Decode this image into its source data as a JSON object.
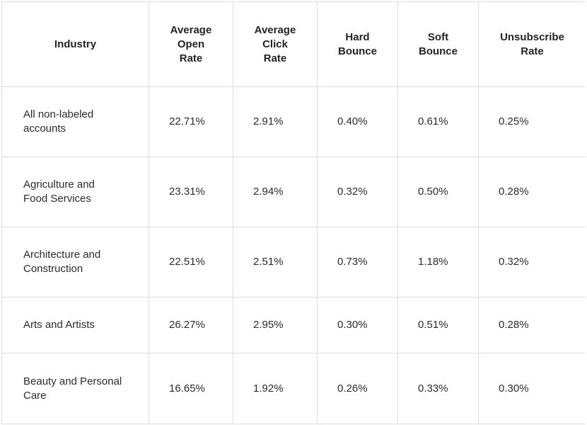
{
  "table": {
    "headers": [
      [
        "Industry"
      ],
      [
        "Average",
        "Open",
        "Rate"
      ],
      [
        "Average",
        "Click",
        "Rate"
      ],
      [
        "Hard",
        "Bounce"
      ],
      [
        "Soft",
        "Bounce"
      ],
      [
        "Unsubscribe",
        "Rate"
      ]
    ],
    "rows": [
      {
        "industry": [
          "All non-labeled",
          "accounts"
        ],
        "open_rate": "22.71%",
        "click_rate": "2.91%",
        "hard_bounce": "0.40%",
        "soft_bounce": "0.61%",
        "unsubscribe_rate": "0.25%"
      },
      {
        "industry": [
          "Agriculture and",
          "Food Services"
        ],
        "open_rate": "23.31%",
        "click_rate": "2.94%",
        "hard_bounce": "0.32%",
        "soft_bounce": "0.50%",
        "unsubscribe_rate": "0.28%"
      },
      {
        "industry": [
          "Architecture and",
          "Construction"
        ],
        "open_rate": "22.51%",
        "click_rate": "2.51%",
        "hard_bounce": "0.73%",
        "soft_bounce": "1.18%",
        "unsubscribe_rate": "0.32%"
      },
      {
        "industry": [
          "Arts and Artists"
        ],
        "open_rate": "26.27%",
        "click_rate": "2.95%",
        "hard_bounce": "0.30%",
        "soft_bounce": "0.51%",
        "unsubscribe_rate": "0.28%"
      },
      {
        "industry": [
          "Beauty and Personal",
          "Care"
        ],
        "open_rate": "16.65%",
        "click_rate": "1.92%",
        "hard_bounce": "0.26%",
        "soft_bounce": "0.33%",
        "unsubscribe_rate": "0.30%"
      }
    ]
  },
  "colors": {
    "border": "#dddddd",
    "text": "#242424",
    "background": "#ffffff"
  }
}
